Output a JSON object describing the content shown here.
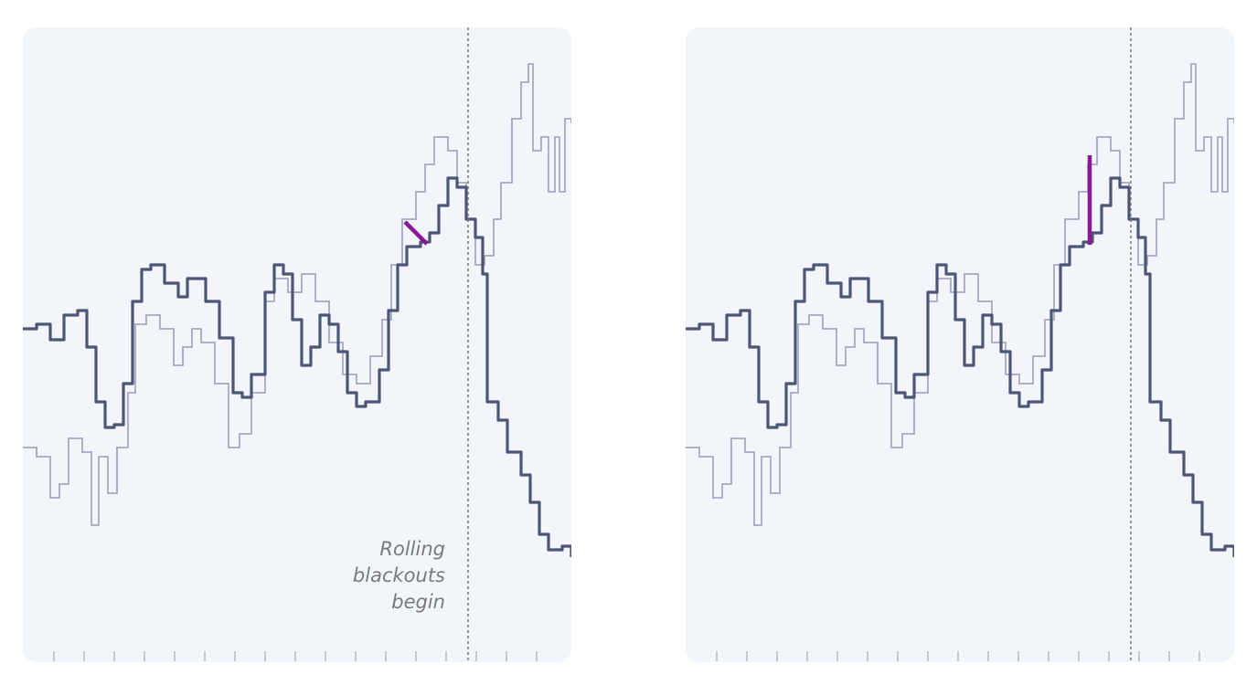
{
  "annotation": {
    "lines": [
      "Rolling",
      "blackouts",
      "begin"
    ]
  }
}
